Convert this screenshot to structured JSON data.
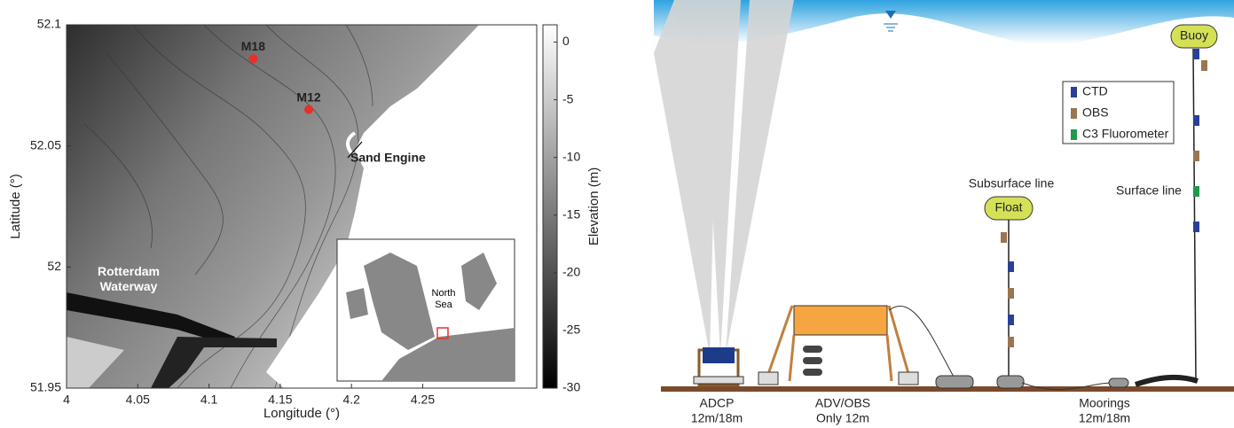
{
  "map": {
    "x_label": "Longitude (°)",
    "y_label": "Latitude (°)",
    "xlim": [
      4,
      4.33
    ],
    "ylim": [
      51.95,
      52.1
    ],
    "xticks": [
      4,
      4.05,
      4.1,
      4.15,
      4.2,
      4.25
    ],
    "yticks": [
      51.95,
      52,
      52.05,
      52.1
    ],
    "points": [
      {
        "label": "M18",
        "lon": 4.131,
        "lat": 52.086,
        "color": "#e8302a"
      },
      {
        "label": "M12",
        "lon": 4.17,
        "lat": 52.065,
        "color": "#e8302a"
      }
    ],
    "annotations": [
      "Sand Engine",
      "Rotterdam Waterway"
    ],
    "inset_label": "North Sea",
    "colorbar": {
      "label": "Elevation (m)",
      "lim": [
        -30,
        1.5
      ],
      "ticks": [
        0,
        -5,
        -10,
        -15,
        -20,
        -25,
        -30
      ]
    }
  },
  "diagram": {
    "instruments": [
      {
        "name": "ADCP",
        "note": "12m/18m"
      },
      {
        "name": "ADV/OBS",
        "note": "Only 12m"
      },
      {
        "name": "Moorings",
        "note": "12m/18m"
      }
    ],
    "lines": [
      "Subsurface line",
      "Surface line"
    ],
    "floats": [
      "Float",
      "Buoy"
    ],
    "legend": [
      {
        "name": "CTD",
        "color": "#2a3f9a"
      },
      {
        "name": "OBS",
        "color": "#9b7450"
      },
      {
        "name": "C3 Fluorometer",
        "color": "#1f9a4a"
      }
    ]
  }
}
